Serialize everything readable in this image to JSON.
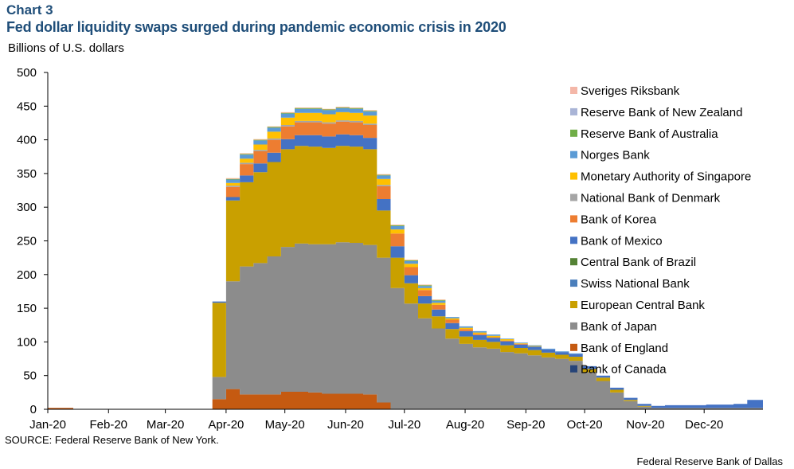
{
  "header": {
    "chart_label": "Chart 3",
    "title": "Fed dollar liquidity swaps surged during pandemic economic crisis in 2020",
    "units": "Billions of U.S. dollars"
  },
  "footer": {
    "source": "SOURCE: Federal Reserve Bank of New York.",
    "credit": "Federal Reserve Bank of Dallas"
  },
  "chart_data": {
    "type": "area",
    "stacked": true,
    "title": "Fed dollar liquidity swaps surged during pandemic economic crisis in 2020",
    "ylabel": "Billions of U.S. dollars",
    "ylim": [
      0,
      500
    ],
    "yticks": [
      0,
      50,
      100,
      150,
      200,
      250,
      300,
      350,
      400,
      450,
      500
    ],
    "xlim": [
      "2020-01-01",
      "2020-12-31"
    ],
    "xticks": [
      {
        "date": "2020-01-01",
        "label": "Jan-20"
      },
      {
        "date": "2020-02-01",
        "label": "Feb-20"
      },
      {
        "date": "2020-03-01",
        "label": "Mar-20"
      },
      {
        "date": "2020-04-01",
        "label": "Apr-20"
      },
      {
        "date": "2020-05-01",
        "label": "May-20"
      },
      {
        "date": "2020-06-01",
        "label": "Jun-20"
      },
      {
        "date": "2020-07-01",
        "label": "Jul-20"
      },
      {
        "date": "2020-08-01",
        "label": "Aug-20"
      },
      {
        "date": "2020-09-01",
        "label": "Sep-20"
      },
      {
        "date": "2020-10-01",
        "label": "Oct-20"
      },
      {
        "date": "2020-11-01",
        "label": "Nov-20"
      },
      {
        "date": "2020-12-01",
        "label": "Dec-20"
      }
    ],
    "grid": false,
    "legend_position": "right",
    "x": [
      "2020-01-01",
      "2020-01-14",
      "2020-03-18",
      "2020-03-25",
      "2020-04-01",
      "2020-04-08",
      "2020-04-15",
      "2020-04-22",
      "2020-04-29",
      "2020-05-06",
      "2020-05-13",
      "2020-05-20",
      "2020-05-27",
      "2020-06-03",
      "2020-06-10",
      "2020-06-17",
      "2020-06-24",
      "2020-07-01",
      "2020-07-08",
      "2020-07-15",
      "2020-07-22",
      "2020-07-29",
      "2020-08-05",
      "2020-08-12",
      "2020-08-19",
      "2020-08-26",
      "2020-09-02",
      "2020-09-09",
      "2020-09-16",
      "2020-09-23",
      "2020-09-30",
      "2020-10-07",
      "2020-10-14",
      "2020-10-21",
      "2020-10-28",
      "2020-11-04",
      "2020-11-11",
      "2020-11-18",
      "2020-11-25",
      "2020-12-02",
      "2020-12-09",
      "2020-12-16",
      "2020-12-23",
      "2020-12-30"
    ],
    "series": [
      {
        "name": "Bank of Canada",
        "color": "#264478",
        "values": [
          0,
          0,
          0,
          0,
          0,
          0,
          0,
          0,
          0,
          0,
          0,
          0,
          0,
          0,
          0,
          0,
          0,
          0,
          0,
          0,
          0,
          0,
          0,
          0,
          0,
          0,
          0,
          0,
          0,
          0,
          0,
          0,
          0,
          0,
          0,
          0,
          0,
          0,
          0,
          0,
          0,
          0,
          0,
          0
        ]
      },
      {
        "name": "Bank of England",
        "color": "#c55a11",
        "values": [
          2,
          0,
          0,
          15,
          30,
          22,
          22,
          22,
          26,
          26,
          25,
          23,
          23,
          23,
          22,
          10,
          0,
          0,
          0,
          0,
          0,
          0,
          0,
          0,
          0,
          0,
          0,
          0,
          0,
          0,
          0,
          0,
          0,
          0,
          0,
          0,
          0,
          0,
          0,
          0,
          0,
          0,
          0,
          0
        ]
      },
      {
        "name": "Bank of Japan",
        "color": "#8c8c8c",
        "values": [
          0,
          0,
          0,
          33,
          160,
          190,
          195,
          205,
          215,
          220,
          220,
          222,
          225,
          224,
          222,
          215,
          180,
          157,
          135,
          120,
          105,
          97,
          92,
          90,
          85,
          83,
          80,
          77,
          75,
          72,
          55,
          42,
          25,
          12,
          4,
          2,
          2,
          2,
          2,
          2,
          2,
          2,
          2,
          2
        ]
      },
      {
        "name": "European Central Bank",
        "color": "#c9a000",
        "values": [
          0,
          0,
          0,
          110,
          120,
          125,
          135,
          140,
          145,
          145,
          145,
          143,
          143,
          143,
          142,
          70,
          45,
          30,
          22,
          18,
          14,
          11,
          11,
          10,
          10,
          8,
          8,
          7,
          6,
          6,
          5,
          5,
          4,
          2,
          1,
          0,
          0,
          0,
          0,
          0,
          0,
          0,
          0,
          0
        ]
      },
      {
        "name": "Swiss National Bank",
        "color": "#4a7ebb",
        "values": [
          0,
          0,
          0,
          0,
          0,
          0,
          0,
          0,
          0,
          0,
          0,
          0,
          0,
          0,
          0,
          0,
          0,
          0,
          0,
          0,
          0,
          0,
          0,
          0,
          0,
          0,
          0,
          0,
          0,
          0,
          0,
          0,
          0,
          0,
          0,
          0,
          0,
          0,
          0,
          0,
          0,
          0,
          0,
          0
        ]
      },
      {
        "name": "Central Bank of Brazil",
        "color": "#548235",
        "values": [
          0,
          0,
          0,
          0,
          0,
          0,
          0,
          0,
          0,
          0,
          0,
          0,
          0,
          0,
          0,
          0,
          0,
          0,
          0,
          0,
          0,
          0,
          0,
          0,
          0,
          0,
          0,
          0,
          0,
          0,
          0,
          0,
          0,
          0,
          0,
          0,
          0,
          0,
          0,
          0,
          0,
          0,
          0,
          0
        ]
      },
      {
        "name": "Bank of Mexico",
        "color": "#4472c4",
        "values": [
          0,
          0,
          0,
          2,
          5,
          10,
          13,
          14,
          15,
          16,
          17,
          17,
          17,
          17,
          17,
          17,
          17,
          12,
          11,
          10,
          9,
          8,
          7,
          6,
          6,
          5,
          5,
          5,
          4,
          4,
          4,
          3,
          3,
          3,
          3,
          3,
          4,
          4,
          4,
          5,
          5,
          6,
          12,
          12
        ]
      },
      {
        "name": "Bank of Korea",
        "color": "#ed7d31",
        "values": [
          0,
          0,
          0,
          0,
          15,
          17,
          18,
          19,
          19,
          19,
          19,
          19,
          19,
          19,
          19,
          19,
          19,
          12,
          9,
          7,
          5,
          3,
          2,
          1,
          1,
          1,
          0,
          0,
          0,
          0,
          0,
          0,
          0,
          0,
          0,
          0,
          0,
          0,
          0,
          0,
          0,
          0,
          0,
          0
        ]
      },
      {
        "name": "National Bank of Denmark",
        "color": "#a5a5a5",
        "values": [
          0,
          0,
          0,
          0,
          2,
          2,
          2,
          2,
          2,
          2,
          2,
          2,
          2,
          2,
          2,
          2,
          0,
          0,
          0,
          0,
          0,
          0,
          0,
          0,
          0,
          0,
          0,
          0,
          0,
          0,
          0,
          0,
          0,
          0,
          0,
          0,
          0,
          0,
          0,
          0,
          0,
          0,
          0,
          0
        ]
      },
      {
        "name": "Monetary Authority of Singapore",
        "color": "#ffc000",
        "values": [
          0,
          0,
          0,
          0,
          4,
          6,
          8,
          10,
          11,
          12,
          12,
          12,
          12,
          12,
          12,
          9,
          6,
          5,
          3,
          3,
          2,
          2,
          2,
          2,
          2,
          1,
          1,
          0,
          0,
          0,
          0,
          0,
          0,
          0,
          0,
          0,
          0,
          0,
          0,
          0,
          0,
          0,
          0,
          0
        ]
      },
      {
        "name": "Norges Bank",
        "color": "#5b9bd5",
        "values": [
          0,
          0,
          0,
          0,
          5,
          6,
          6,
          6,
          6,
          6,
          6,
          6,
          6,
          6,
          6,
          5,
          5,
          4,
          3,
          3,
          2,
          2,
          2,
          2,
          1,
          1,
          1,
          1,
          1,
          1,
          0,
          0,
          0,
          0,
          0,
          0,
          0,
          0,
          0,
          0,
          0,
          0,
          0,
          0
        ]
      },
      {
        "name": "Reserve Bank of Australia",
        "color": "#70ad47",
        "values": [
          0,
          0,
          0,
          0,
          1,
          1,
          1,
          1,
          1,
          1,
          1,
          1,
          1,
          1,
          1,
          1,
          1,
          1,
          1,
          1,
          0,
          0,
          0,
          0,
          0,
          0,
          0,
          0,
          0,
          0,
          0,
          0,
          0,
          0,
          0,
          0,
          0,
          0,
          0,
          0,
          0,
          0,
          0,
          0
        ]
      },
      {
        "name": "Reserve Bank of New Zealand",
        "color": "#9dc3e6",
        "values": [
          0,
          0,
          0,
          0,
          0,
          0,
          0,
          0,
          0,
          0,
          0,
          0,
          0,
          0,
          0,
          0,
          0,
          0,
          0,
          0,
          0,
          0,
          0,
          0,
          0,
          0,
          0,
          0,
          0,
          0,
          0,
          0,
          0,
          0,
          0,
          0,
          0,
          0,
          0,
          0,
          0,
          0,
          0,
          0
        ]
      },
      {
        "name": "Sveriges Riksbank",
        "color": "#f4b183",
        "values": [
          0,
          0,
          0,
          0,
          1,
          1,
          1,
          1,
          1,
          1,
          1,
          1,
          1,
          1,
          1,
          1,
          1,
          1,
          1,
          1,
          0,
          0,
          0,
          0,
          0,
          0,
          0,
          0,
          0,
          0,
          0,
          0,
          0,
          0,
          0,
          0,
          0,
          0,
          0,
          0,
          0,
          0,
          0,
          0
        ]
      }
    ],
    "legend_order": [
      "Sveriges Riksbank",
      "Reserve Bank of New Zealand",
      "Reserve Bank of Australia",
      "Norges Bank",
      "Monetary Authority of Singapore",
      "National Bank of Denmark",
      "Bank of Korea",
      "Bank of Mexico",
      "Central Bank of Brazil",
      "Swiss National Bank",
      "European Central Bank",
      "Bank of Japan",
      "Bank of England",
      "Bank of Canada"
    ],
    "legend_colors": {
      "Sveriges Riksbank": "#f4b7a8",
      "Reserve Bank of New Zealand": "#a9b4d6",
      "Reserve Bank of Australia": "#70ad47",
      "Norges Bank": "#5b9bd5",
      "Monetary Authority of Singapore": "#ffc000",
      "National Bank of Denmark": "#a5a5a5",
      "Bank of Korea": "#ed7d31",
      "Bank of Mexico": "#4472c4",
      "Central Bank of Brazil": "#548235",
      "Swiss National Bank": "#4a7ebb",
      "European Central Bank": "#c9a000",
      "Bank of Japan": "#8c8c8c",
      "Bank of England": "#c55a11",
      "Bank of Canada": "#264478"
    }
  }
}
